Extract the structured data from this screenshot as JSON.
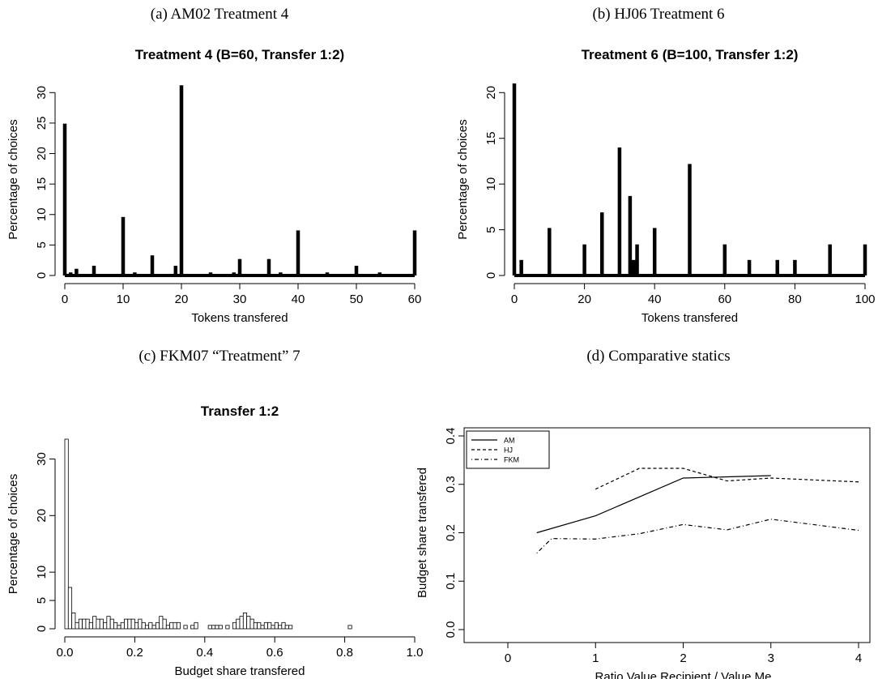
{
  "figure": {
    "panels": [
      {
        "caption": "(a) AM02 Treatment 4"
      },
      {
        "caption": "(b) HJ06 Treatment 6"
      },
      {
        "caption": "(c) FKM07 “Treatment” 7"
      },
      {
        "caption": "(d) Comparative statics"
      }
    ]
  },
  "chart_data": [
    {
      "type": "bar",
      "title": "Treatment 4  (B=60, Transfer 1:2)",
      "xlabel": "Tokens transfered",
      "ylabel": "Percentage of choices",
      "xlim": [
        0,
        60
      ],
      "ylim": [
        0,
        31.5
      ],
      "xticks": [
        "0",
        "10",
        "20",
        "30",
        "40",
        "50",
        "60"
      ],
      "yticks": [
        "0",
        "5",
        "10",
        "15",
        "20",
        "25",
        "30"
      ],
      "x": [
        0,
        1,
        2,
        5,
        10,
        12,
        15,
        19,
        20,
        25,
        29,
        30,
        35,
        37,
        40,
        45,
        50,
        54,
        60
      ],
      "values": [
        24.9,
        0.5,
        1.1,
        1.6,
        9.6,
        0.5,
        3.3,
        1.6,
        31.2,
        0.5,
        0.5,
        2.7,
        2.7,
        0.5,
        7.4,
        0.5,
        1.6,
        0.5,
        7.4
      ]
    },
    {
      "type": "bar",
      "title": "Treatment 6  (B=100, Transfer 1:2)",
      "xlabel": "Tokens transfered",
      "ylabel": "Percentage of choices",
      "xlim": [
        0,
        100
      ],
      "ylim": [
        0,
        21
      ],
      "xticks": [
        "0",
        "20",
        "40",
        "60",
        "80",
        "100"
      ],
      "yticks": [
        "0",
        "5",
        "10",
        "15",
        "20"
      ],
      "x": [
        0,
        2,
        10,
        20,
        25,
        30,
        33,
        34,
        35,
        40,
        50,
        60,
        67,
        75,
        80,
        90,
        100
      ],
      "values": [
        21.0,
        1.7,
        5.2,
        3.4,
        6.9,
        14.0,
        8.7,
        1.7,
        3.4,
        5.2,
        12.2,
        3.4,
        1.7,
        1.7,
        1.7,
        3.4,
        3.4
      ]
    },
    {
      "type": "histogram",
      "title": "Transfer 1:2",
      "xlabel": "Budget share transfered",
      "ylabel": "Percentage of choices",
      "xlim": [
        0,
        1
      ],
      "ylim": [
        0,
        33.5
      ],
      "xticks": [
        "0.0",
        "0.2",
        "0.4",
        "0.6",
        "0.8",
        "1.0"
      ],
      "yticks": [
        "0",
        "5",
        "10",
        "20",
        "30"
      ],
      "bin_width": 0.01,
      "values": [
        33.5,
        7.3,
        2.8,
        1.1,
        1.7,
        1.7,
        1.7,
        1.1,
        2.2,
        1.7,
        1.7,
        1.1,
        2.2,
        1.7,
        1.1,
        0.6,
        1.1,
        1.7,
        1.7,
        1.7,
        1.1,
        1.7,
        1.1,
        0.6,
        1.1,
        0.6,
        1.1,
        2.2,
        1.7,
        0.6,
        1.1,
        1.1,
        1.1,
        0,
        0.6,
        0,
        0.6,
        1.1,
        0,
        0,
        0,
        0.6,
        0.6,
        0.6,
        0.6,
        0,
        0.6,
        0,
        1.1,
        1.7,
        2.2,
        2.8,
        2.2,
        1.7,
        1.1,
        1.1,
        0.6,
        1.1,
        1.1,
        0.6,
        1.1,
        0.6,
        1.1,
        0.6,
        0.6,
        0,
        0,
        0,
        0,
        0,
        0,
        0,
        0,
        0,
        0,
        0,
        0,
        0,
        0,
        0,
        0,
        0.6,
        0,
        0,
        0,
        0,
        0,
        0,
        0,
        0,
        0,
        0,
        0,
        0,
        0,
        0,
        0,
        0,
        0,
        0
      ]
    },
    {
      "type": "line",
      "title": "",
      "xlabel": "Ratio Value Recipient / Value Me",
      "ylabel": "Budget share transfered",
      "xlim": [
        0,
        4
      ],
      "ylim": [
        0,
        0.4
      ],
      "xticks": [
        "0",
        "1",
        "2",
        "3",
        "4"
      ],
      "yticks": [
        "0.0",
        "0.1",
        "0.2",
        "0.3",
        "0.4"
      ],
      "legend_position": "top-left",
      "series": [
        {
          "name": "AM",
          "dash": "solid",
          "x": [
            0.33,
            1,
            2,
            3
          ],
          "y": [
            0.2,
            0.235,
            0.313,
            0.318
          ]
        },
        {
          "name": "HJ",
          "dash": "dashed",
          "x": [
            1,
            1.5,
            2,
            2.5,
            3,
            4
          ],
          "y": [
            0.29,
            0.333,
            0.333,
            0.307,
            0.313,
            0.305
          ]
        },
        {
          "name": "FKM",
          "dash": "dotdash",
          "x": [
            0.33,
            0.5,
            1,
            1.5,
            2,
            2.5,
            3,
            4
          ],
          "y": [
            0.158,
            0.188,
            0.187,
            0.198,
            0.217,
            0.206,
            0.228,
            0.205
          ]
        }
      ]
    }
  ]
}
